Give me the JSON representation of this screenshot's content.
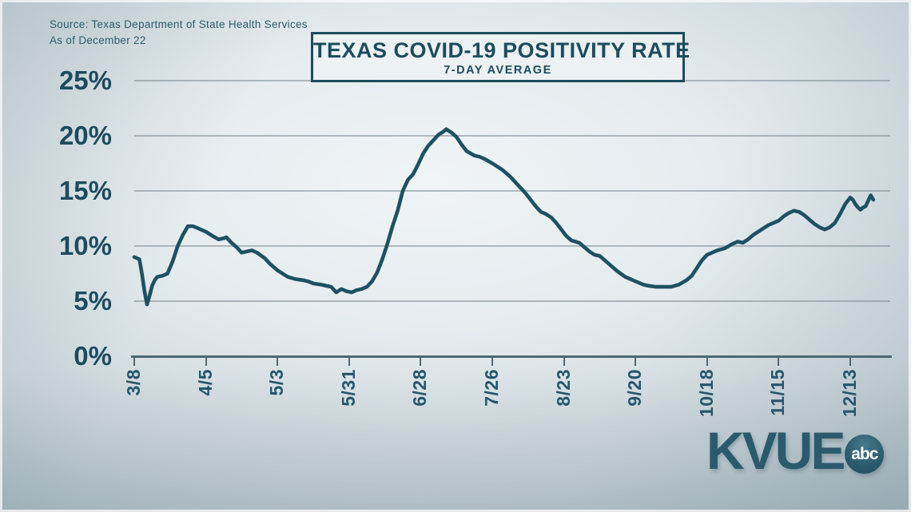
{
  "meta": {
    "source_line1": "Source: Texas Department of State Health Services",
    "source_line2": "As of December 22"
  },
  "title": {
    "main": "TEXAS COVID-19 POSITIVITY RATE",
    "sub": "7-DAY AVERAGE"
  },
  "branding": {
    "station": "KVUE",
    "network": "abc"
  },
  "colors": {
    "line": "#1d5163",
    "title_text": "#1d4c5c",
    "axis": "#4d6873",
    "gridline": "#7a8992",
    "background_center": "#eff3f5",
    "background_edge": "#a8b8c0",
    "logo": "#2a5a6c",
    "abc_text": "#ffffff"
  },
  "chart_data": {
    "type": "line",
    "title": "TEXAS COVID-19 POSITIVITY RATE",
    "subtitle": "7-DAY AVERAGE",
    "xlabel": "",
    "ylabel": "",
    "ylim": [
      0,
      25
    ],
    "grid": true,
    "legend": "none",
    "y_tick_labels": [
      "25%",
      "20%",
      "15%",
      "10%",
      "5%",
      "0%"
    ],
    "y_tick_values": [
      25,
      20,
      15,
      10,
      5,
      0
    ],
    "x_tick_labels": [
      "3/8",
      "4/5",
      "5/3",
      "5/31",
      "6/28",
      "7/26",
      "8/23",
      "9/20",
      "10/18",
      "11/15",
      "12/13"
    ],
    "series": [
      {
        "name": "Positivity rate (7-day average, %)",
        "points": [
          [
            "3/8",
            9.0
          ],
          [
            "3/9",
            8.9
          ],
          [
            "3/10",
            8.8
          ],
          [
            "3/11",
            7.5
          ],
          [
            "3/12",
            5.9
          ],
          [
            "3/13",
            4.7
          ],
          [
            "3/14",
            5.5
          ],
          [
            "3/15",
            6.4
          ],
          [
            "3/16",
            6.9
          ],
          [
            "3/17",
            7.2
          ],
          [
            "3/19",
            7.3
          ],
          [
            "3/21",
            7.5
          ],
          [
            "3/23",
            8.6
          ],
          [
            "3/25",
            10.0
          ],
          [
            "3/27",
            11.0
          ],
          [
            "3/29",
            11.8
          ],
          [
            "3/31",
            11.8
          ],
          [
            "4/2",
            11.6
          ],
          [
            "4/5",
            11.3
          ],
          [
            "4/7",
            11.0
          ],
          [
            "4/10",
            10.6
          ],
          [
            "4/12",
            10.7
          ],
          [
            "4/13",
            10.8
          ],
          [
            "4/15",
            10.3
          ],
          [
            "4/17",
            9.9
          ],
          [
            "4/19",
            9.4
          ],
          [
            "4/21",
            9.5
          ],
          [
            "4/23",
            9.6
          ],
          [
            "4/25",
            9.4
          ],
          [
            "4/28",
            8.9
          ],
          [
            "4/30",
            8.4
          ],
          [
            "5/3",
            7.8
          ],
          [
            "5/5",
            7.5
          ],
          [
            "5/7",
            7.2
          ],
          [
            "5/10",
            7.0
          ],
          [
            "5/13",
            6.9
          ],
          [
            "5/15",
            6.8
          ],
          [
            "5/17",
            6.6
          ],
          [
            "5/20",
            6.5
          ],
          [
            "5/22",
            6.4
          ],
          [
            "5/24",
            6.3
          ],
          [
            "5/26",
            5.8
          ],
          [
            "5/28",
            6.1
          ],
          [
            "5/30",
            5.9
          ],
          [
            "6/1",
            5.8
          ],
          [
            "6/3",
            6.0
          ],
          [
            "6/5",
            6.1
          ],
          [
            "6/7",
            6.3
          ],
          [
            "6/9",
            6.8
          ],
          [
            "6/11",
            7.6
          ],
          [
            "6/13",
            8.8
          ],
          [
            "6/15",
            10.2
          ],
          [
            "6/17",
            11.8
          ],
          [
            "6/19",
            13.2
          ],
          [
            "6/21",
            15.0
          ],
          [
            "6/23",
            16.0
          ],
          [
            "6/25",
            16.5
          ],
          [
            "6/27",
            17.4
          ],
          [
            "6/29",
            18.4
          ],
          [
            "7/1",
            19.1
          ],
          [
            "7/3",
            19.6
          ],
          [
            "7/5",
            20.1
          ],
          [
            "7/7",
            20.4
          ],
          [
            "7/8",
            20.6
          ],
          [
            "7/10",
            20.3
          ],
          [
            "7/12",
            19.9
          ],
          [
            "7/14",
            19.2
          ],
          [
            "7/16",
            18.6
          ],
          [
            "7/19",
            18.2
          ],
          [
            "7/21",
            18.1
          ],
          [
            "7/23",
            17.9
          ],
          [
            "7/26",
            17.5
          ],
          [
            "7/28",
            17.2
          ],
          [
            "7/30",
            16.9
          ],
          [
            "8/2",
            16.3
          ],
          [
            "8/4",
            15.8
          ],
          [
            "8/6",
            15.3
          ],
          [
            "8/8",
            14.8
          ],
          [
            "8/10",
            14.2
          ],
          [
            "8/12",
            13.6
          ],
          [
            "8/14",
            13.1
          ],
          [
            "8/16",
            12.9
          ],
          [
            "8/18",
            12.6
          ],
          [
            "8/20",
            12.1
          ],
          [
            "8/22",
            11.5
          ],
          [
            "8/24",
            10.9
          ],
          [
            "8/26",
            10.5
          ],
          [
            "8/29",
            10.3
          ],
          [
            "8/31",
            9.9
          ],
          [
            "9/2",
            9.5
          ],
          [
            "9/4",
            9.2
          ],
          [
            "9/6",
            9.1
          ],
          [
            "9/8",
            8.7
          ],
          [
            "9/11",
            8.1
          ],
          [
            "9/13",
            7.7
          ],
          [
            "9/16",
            7.2
          ],
          [
            "9/18",
            7.0
          ],
          [
            "9/20",
            6.8
          ],
          [
            "9/23",
            6.5
          ],
          [
            "9/25",
            6.4
          ],
          [
            "9/28",
            6.3
          ],
          [
            "10/1",
            6.3
          ],
          [
            "10/4",
            6.3
          ],
          [
            "10/7",
            6.5
          ],
          [
            "10/10",
            6.9
          ],
          [
            "10/12",
            7.3
          ],
          [
            "10/14",
            8.0
          ],
          [
            "10/16",
            8.7
          ],
          [
            "10/18",
            9.2
          ],
          [
            "10/20",
            9.4
          ],
          [
            "10/22",
            9.6
          ],
          [
            "10/25",
            9.8
          ],
          [
            "10/28",
            10.2
          ],
          [
            "10/30",
            10.4
          ],
          [
            "11/1",
            10.3
          ],
          [
            "11/3",
            10.6
          ],
          [
            "11/5",
            11.0
          ],
          [
            "11/7",
            11.3
          ],
          [
            "11/9",
            11.6
          ],
          [
            "11/11",
            11.9
          ],
          [
            "11/13",
            12.1
          ],
          [
            "11/15",
            12.3
          ],
          [
            "11/17",
            12.7
          ],
          [
            "11/19",
            13.0
          ],
          [
            "11/21",
            13.2
          ],
          [
            "11/23",
            13.1
          ],
          [
            "11/25",
            12.8
          ],
          [
            "11/27",
            12.4
          ],
          [
            "11/29",
            12.0
          ],
          [
            "12/1",
            11.7
          ],
          [
            "12/3",
            11.5
          ],
          [
            "12/5",
            11.7
          ],
          [
            "12/7",
            12.1
          ],
          [
            "12/9",
            12.9
          ],
          [
            "12/11",
            13.8
          ],
          [
            "12/13",
            14.4
          ],
          [
            "12/14",
            14.2
          ],
          [
            "12/15",
            13.8
          ],
          [
            "12/16",
            13.5
          ],
          [
            "12/17",
            13.3
          ],
          [
            "12/18",
            13.5
          ],
          [
            "12/19",
            13.6
          ],
          [
            "12/20",
            14.1
          ],
          [
            "12/21",
            14.6
          ],
          [
            "12/22",
            14.2
          ]
        ]
      }
    ]
  }
}
